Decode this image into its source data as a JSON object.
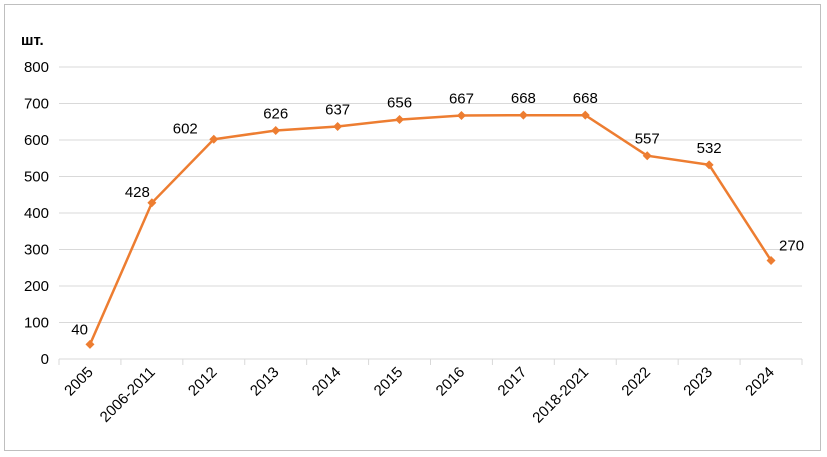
{
  "chart_data": {
    "type": "line",
    "unit_label": "шт.",
    "categories": [
      "2005",
      "2006-2011",
      "2012",
      "2013",
      "2014",
      "2015",
      "2016",
      "2017",
      "2018-2021",
      "2022",
      "2023",
      "2024"
    ],
    "values": [
      40,
      428,
      602,
      626,
      637,
      656,
      667,
      668,
      668,
      557,
      532,
      270
    ],
    "data_labels": [
      "40",
      "428",
      "602",
      "626",
      "637",
      "656",
      "667",
      "668",
      "668",
      "557",
      "532",
      "270"
    ],
    "y_ticks": [
      "0",
      "100",
      "200",
      "300",
      "400",
      "500",
      "600",
      "700",
      "800"
    ],
    "ylim": [
      0,
      800
    ],
    "grid": true,
    "legend": "none",
    "line_color": "#ED7D31",
    "grid_color": "#D9D9D9"
  }
}
